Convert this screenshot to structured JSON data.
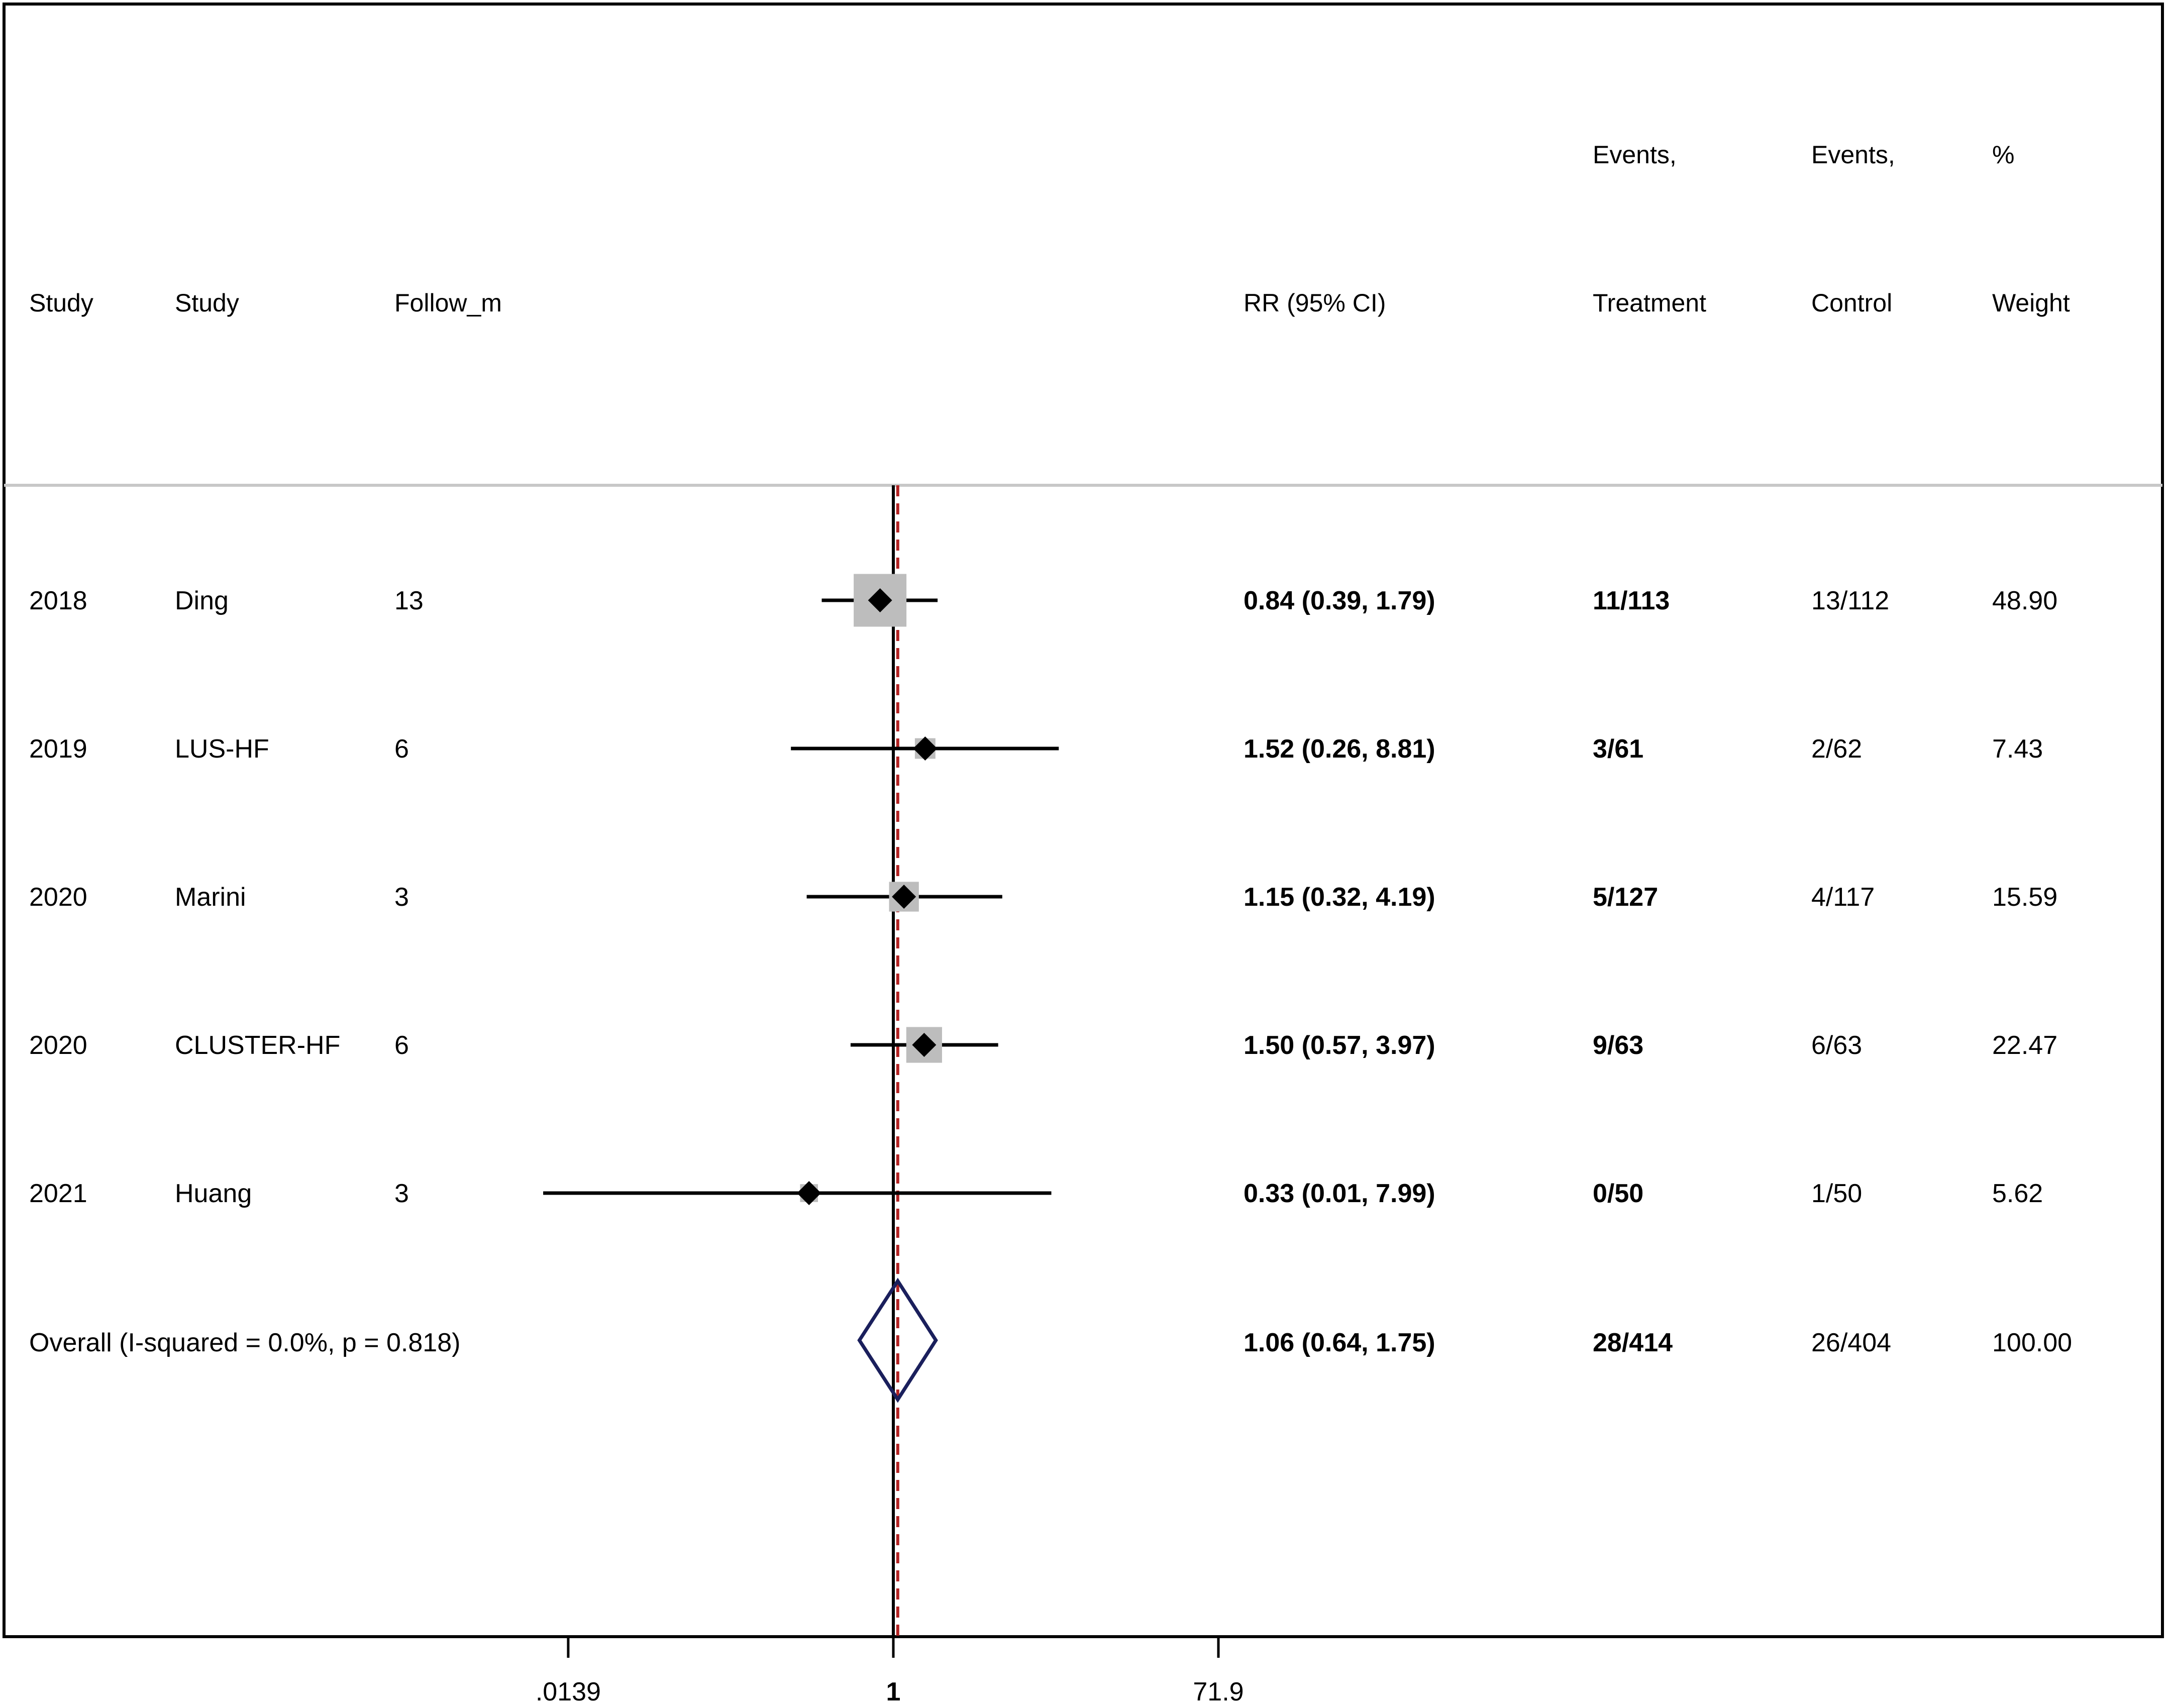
{
  "chart_data": {
    "type": "forest",
    "scale": "log",
    "x_ticks": [
      ".0139",
      "1",
      "71.9"
    ],
    "x_tick_values": [
      0.0139,
      1,
      71.9
    ],
    "reference_value": 1,
    "overall_value": 1.06,
    "headers": {
      "c1": "Study",
      "c2": "Study",
      "c3": "Follow_m",
      "rr": "RR (95% CI)",
      "treat_1": "Events,",
      "treat_2": "Treatment",
      "ctrl_1": "Events,",
      "ctrl_2": "Control",
      "weight_1": "%",
      "weight_2": "Weight"
    },
    "studies": [
      {
        "year": "2018",
        "name": "Ding",
        "follow": "13",
        "rr": 0.84,
        "lo": 0.39,
        "hi": 1.79,
        "rr_text": "0.84 (0.39, 1.79)",
        "treatment": "11/113",
        "control": "13/112",
        "weight": "48.90",
        "weight_value": 48.9
      },
      {
        "year": "2019",
        "name": "LUS-HF",
        "follow": "6",
        "rr": 1.52,
        "lo": 0.26,
        "hi": 8.81,
        "rr_text": "1.52 (0.26, 8.81)",
        "treatment": "3/61",
        "control": "2/62",
        "weight": "7.43",
        "weight_value": 7.43
      },
      {
        "year": "2020",
        "name": "Marini",
        "follow": "3",
        "rr": 1.15,
        "lo": 0.32,
        "hi": 4.19,
        "rr_text": "1.15 (0.32, 4.19)",
        "treatment": "5/127",
        "control": "4/117",
        "weight": "15.59",
        "weight_value": 15.59
      },
      {
        "year": "2020",
        "name": "CLUSTER-HF",
        "follow": "6",
        "rr": 1.5,
        "lo": 0.57,
        "hi": 3.97,
        "rr_text": "1.50 (0.57, 3.97)",
        "treatment": "9/63",
        "control": "6/63",
        "weight": "22.47",
        "weight_value": 22.47
      },
      {
        "year": "2021",
        "name": "Huang",
        "follow": "3",
        "rr": 0.33,
        "lo": 0.01,
        "hi": 7.99,
        "rr_text": "0.33 (0.01, 7.99)",
        "treatment": "0/50",
        "control": "1/50",
        "weight": "5.62",
        "weight_value": 5.62
      }
    ],
    "overall": {
      "label": "Overall  (I-squared = 0.0%, p = 0.818)",
      "rr": 1.06,
      "lo": 0.64,
      "hi": 1.75,
      "rr_text": "1.06 (0.64, 1.75)",
      "treatment": "28/414",
      "control": "26/404",
      "weight": "100.00"
    }
  },
  "colors": {
    "frame": "#000000",
    "separator": "#c8c8c8",
    "null_line": "#000000",
    "overall_line": "#b22222",
    "weight_box": "#bdbdbd",
    "point": "#000000",
    "overall_diamond": "#1a1f5c"
  }
}
